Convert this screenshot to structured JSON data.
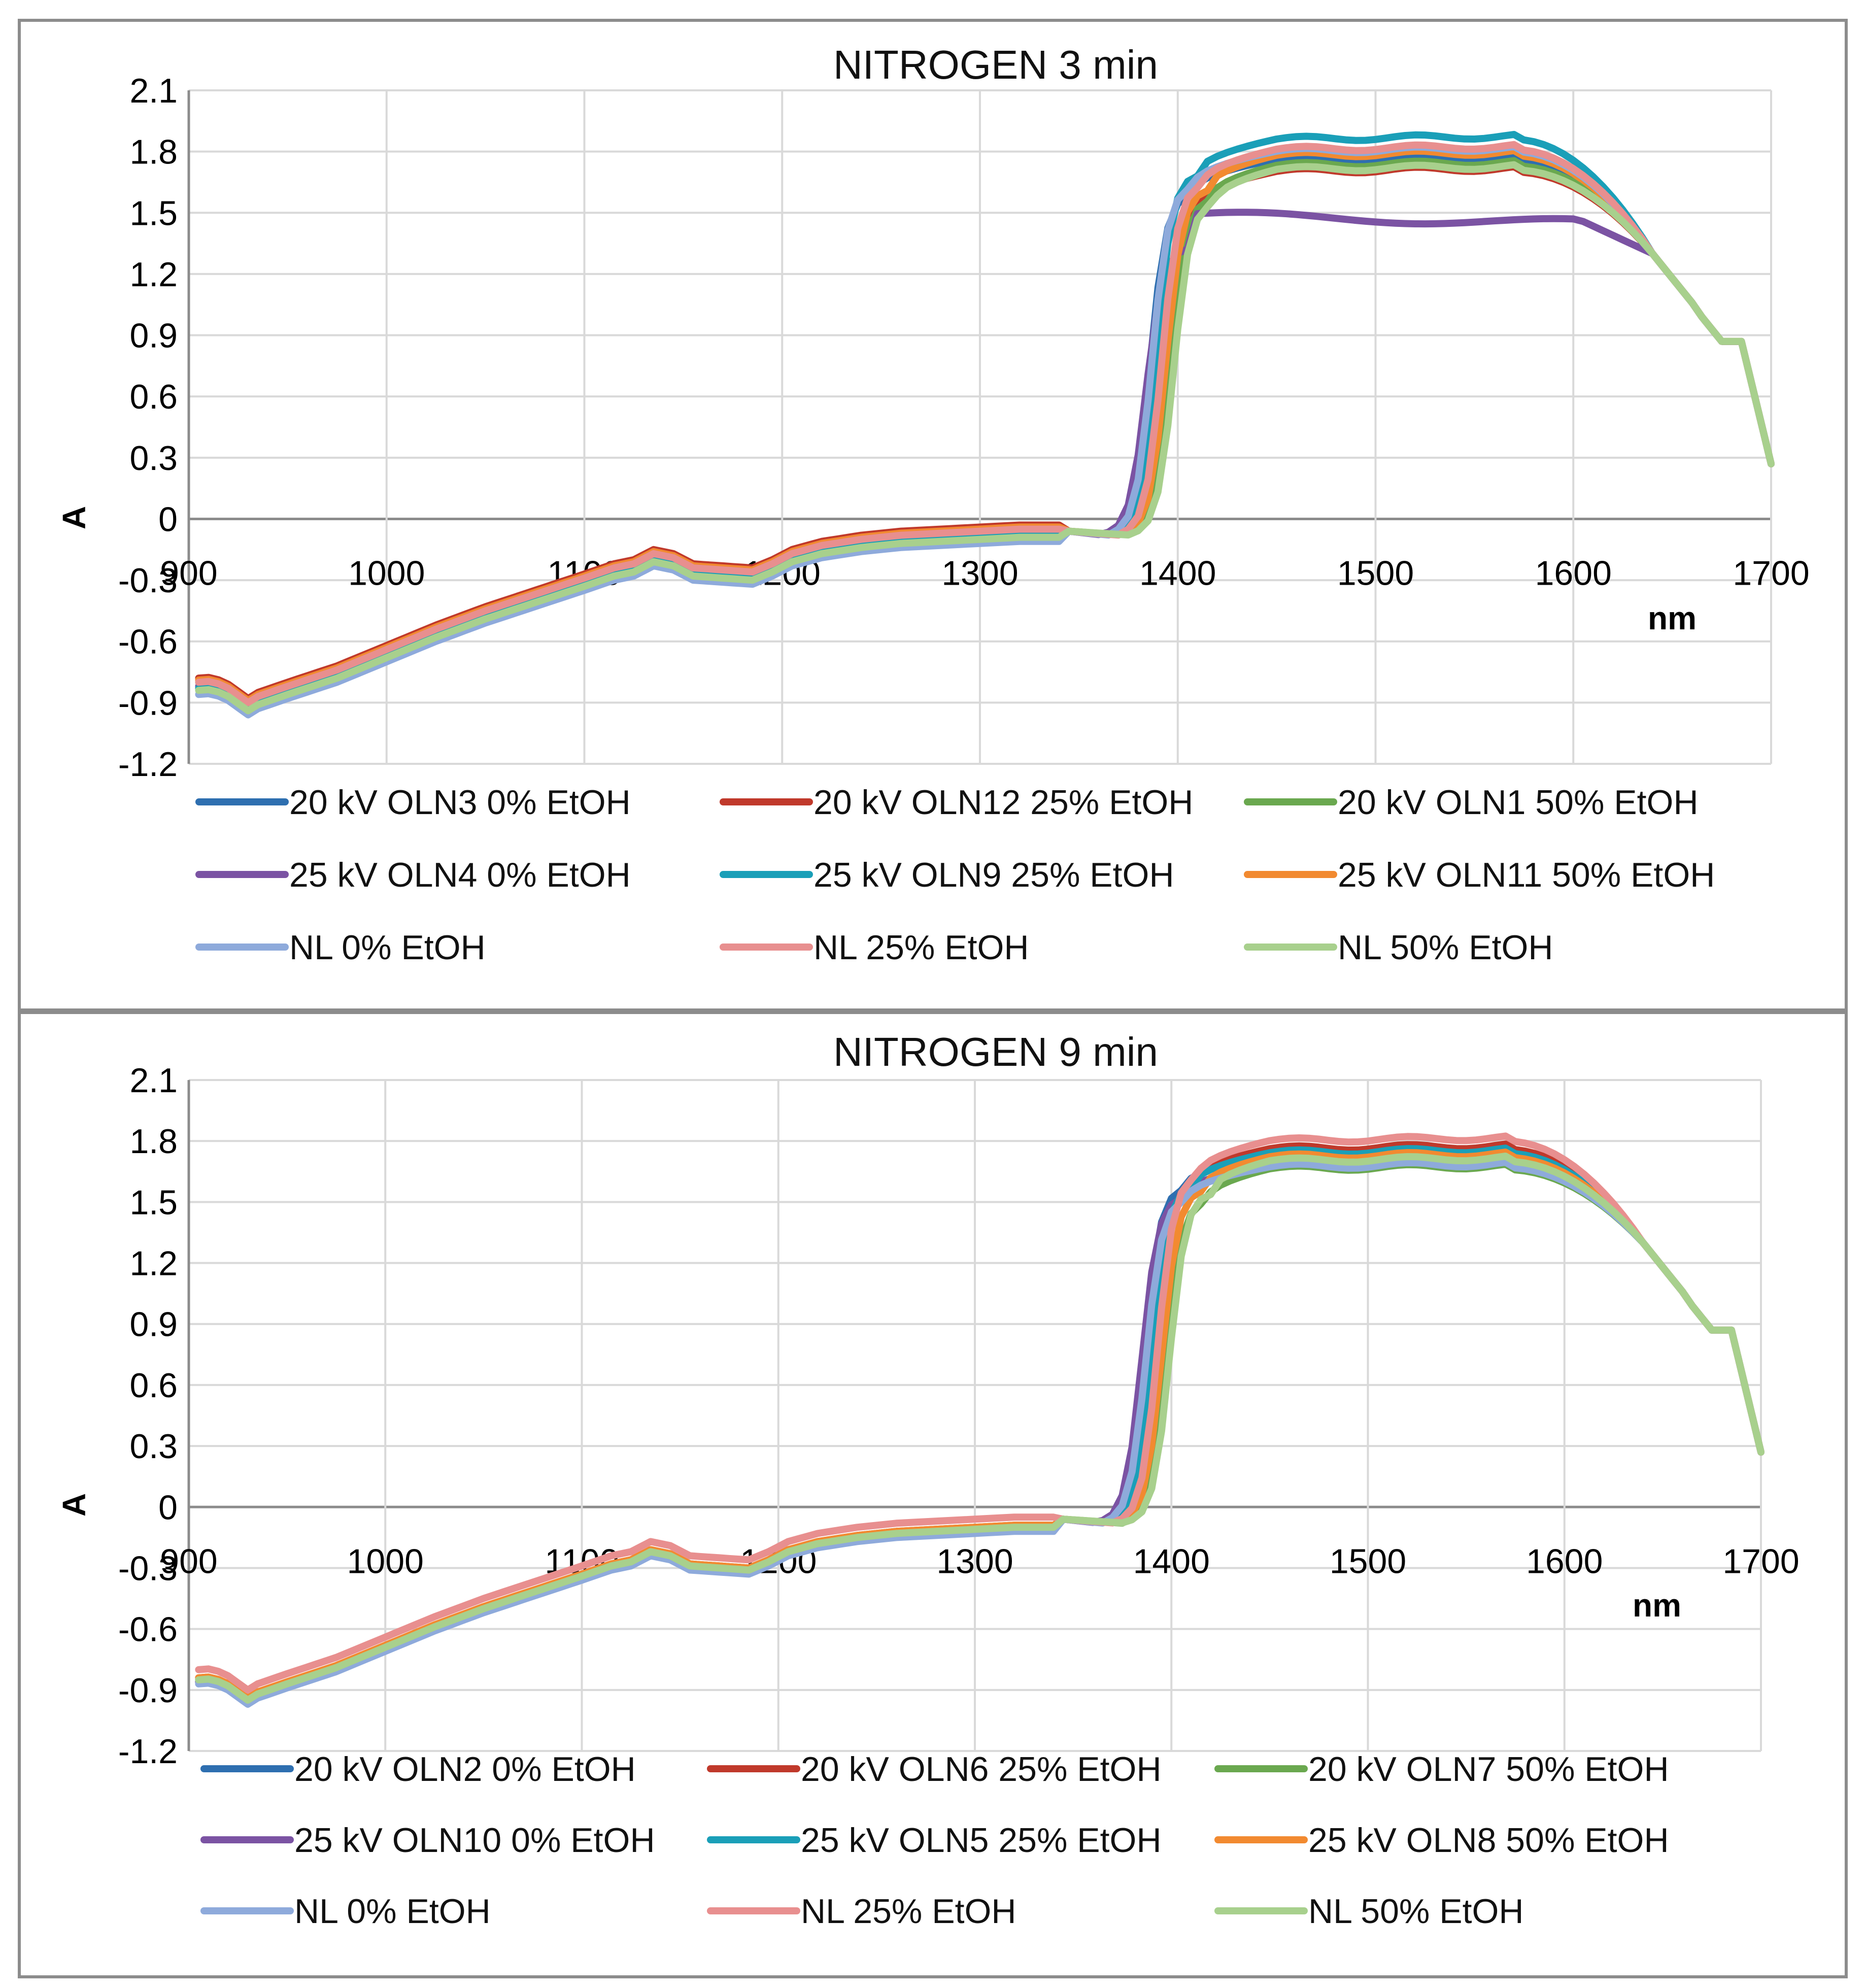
{
  "colors": {
    "c1": "#2e6fb0",
    "c2": "#c0392b",
    "c3": "#6aa84f",
    "c4": "#7b53a3",
    "c5": "#1a9fb8",
    "c6": "#f28a30",
    "c7": "#8eaadb",
    "c8": "#e88f8f",
    "c9": "#a8d08d"
  },
  "chart_data": [
    {
      "type": "line",
      "title": "NITROGEN 3 min",
      "xlabel": "nm",
      "ylabel": "A",
      "xlim": [
        900,
        1700
      ],
      "ylim": [
        -1.2,
        2.1
      ],
      "x_ticks": [
        "900",
        "1000",
        "1100",
        "1200",
        "1300",
        "1400",
        "1500",
        "1600",
        "1700"
      ],
      "y_ticks": [
        "2.1",
        "1.8",
        "1.5",
        "1.2",
        "0.9",
        "0.6",
        "0.3",
        "0",
        "-0.3",
        "-0.6",
        "-0.9",
        "-1.2"
      ],
      "series": [
        {
          "name": "20 kV OLN3 0% EtOH",
          "color_key": "c1",
          "rise": 1385,
          "plateau": 1.78,
          "start": -0.82
        },
        {
          "name": "20 kV OLN12 25% EtOH",
          "color_key": "c2",
          "rise": 1390,
          "plateau": 1.72,
          "start": -0.78
        },
        {
          "name": "20 kV OLN1 50% EtOH",
          "color_key": "c3",
          "rise": 1395,
          "plateau": 1.75,
          "start": -0.8
        },
        {
          "name": "25 kV OLN4 0% EtOH",
          "color_key": "c4",
          "rise": 1383,
          "plateau": 1.48,
          "start": -0.82
        },
        {
          "name": "25 kV OLN9 25% EtOH",
          "color_key": "c5",
          "rise": 1388,
          "plateau": 1.88,
          "start": -0.83
        },
        {
          "name": "25 kV OLN11 50% EtOH",
          "color_key": "c6",
          "rise": 1393,
          "plateau": 1.8,
          "start": -0.79
        },
        {
          "name": "NL 0% EtOH",
          "color_key": "c7",
          "rise": 1386,
          "plateau": 1.82,
          "start": -0.86
        },
        {
          "name": "NL 25% EtOH",
          "color_key": "c8",
          "rise": 1391,
          "plateau": 1.83,
          "start": -0.8
        },
        {
          "name": "NL 50% EtOH",
          "color_key": "c9",
          "rise": 1397,
          "plateau": 1.73,
          "start": -0.84
        }
      ]
    },
    {
      "type": "line",
      "title": "NITROGEN 9 min",
      "xlabel": "nm",
      "ylabel": "A",
      "xlim": [
        900,
        1700
      ],
      "ylim": [
        -1.2,
        2.1
      ],
      "x_ticks": [
        "900",
        "1000",
        "1100",
        "1200",
        "1300",
        "1400",
        "1500",
        "1600",
        "1700"
      ],
      "y_ticks": [
        "2.1",
        "1.8",
        "1.5",
        "1.2",
        "0.9",
        "0.6",
        "0.3",
        "0",
        "-0.3",
        "-0.6",
        "-0.9",
        "-1.2"
      ],
      "series": [
        {
          "name": "20 kV OLN2 0% EtOH",
          "color_key": "c1",
          "rise": 1385,
          "plateau": 1.75,
          "start": -0.86
        },
        {
          "name": "20 kV OLN6 25% EtOH",
          "color_key": "c2",
          "rise": 1390,
          "plateau": 1.78,
          "start": -0.84
        },
        {
          "name": "20 kV OLN7 50% EtOH",
          "color_key": "c3",
          "rise": 1396,
          "plateau": 1.68,
          "start": -0.85
        },
        {
          "name": "25 kV OLN10 0% EtOH",
          "color_key": "c4",
          "rise": 1384,
          "plateau": 1.7,
          "start": -0.86
        },
        {
          "name": "25 kV OLN5 25% EtOH",
          "color_key": "c5",
          "rise": 1389,
          "plateau": 1.76,
          "start": -0.85
        },
        {
          "name": "25 kV OLN8 50% EtOH",
          "color_key": "c6",
          "rise": 1394,
          "plateau": 1.74,
          "start": -0.84
        },
        {
          "name": "NL 0% EtOH",
          "color_key": "c7",
          "rise": 1386,
          "plateau": 1.69,
          "start": -0.87
        },
        {
          "name": "NL 25% EtOH",
          "color_key": "c8",
          "rise": 1392,
          "plateau": 1.82,
          "start": -0.8
        },
        {
          "name": "NL 50% EtOH",
          "color_key": "c9",
          "rise": 1398,
          "plateau": 1.72,
          "start": -0.85
        }
      ]
    }
  ]
}
